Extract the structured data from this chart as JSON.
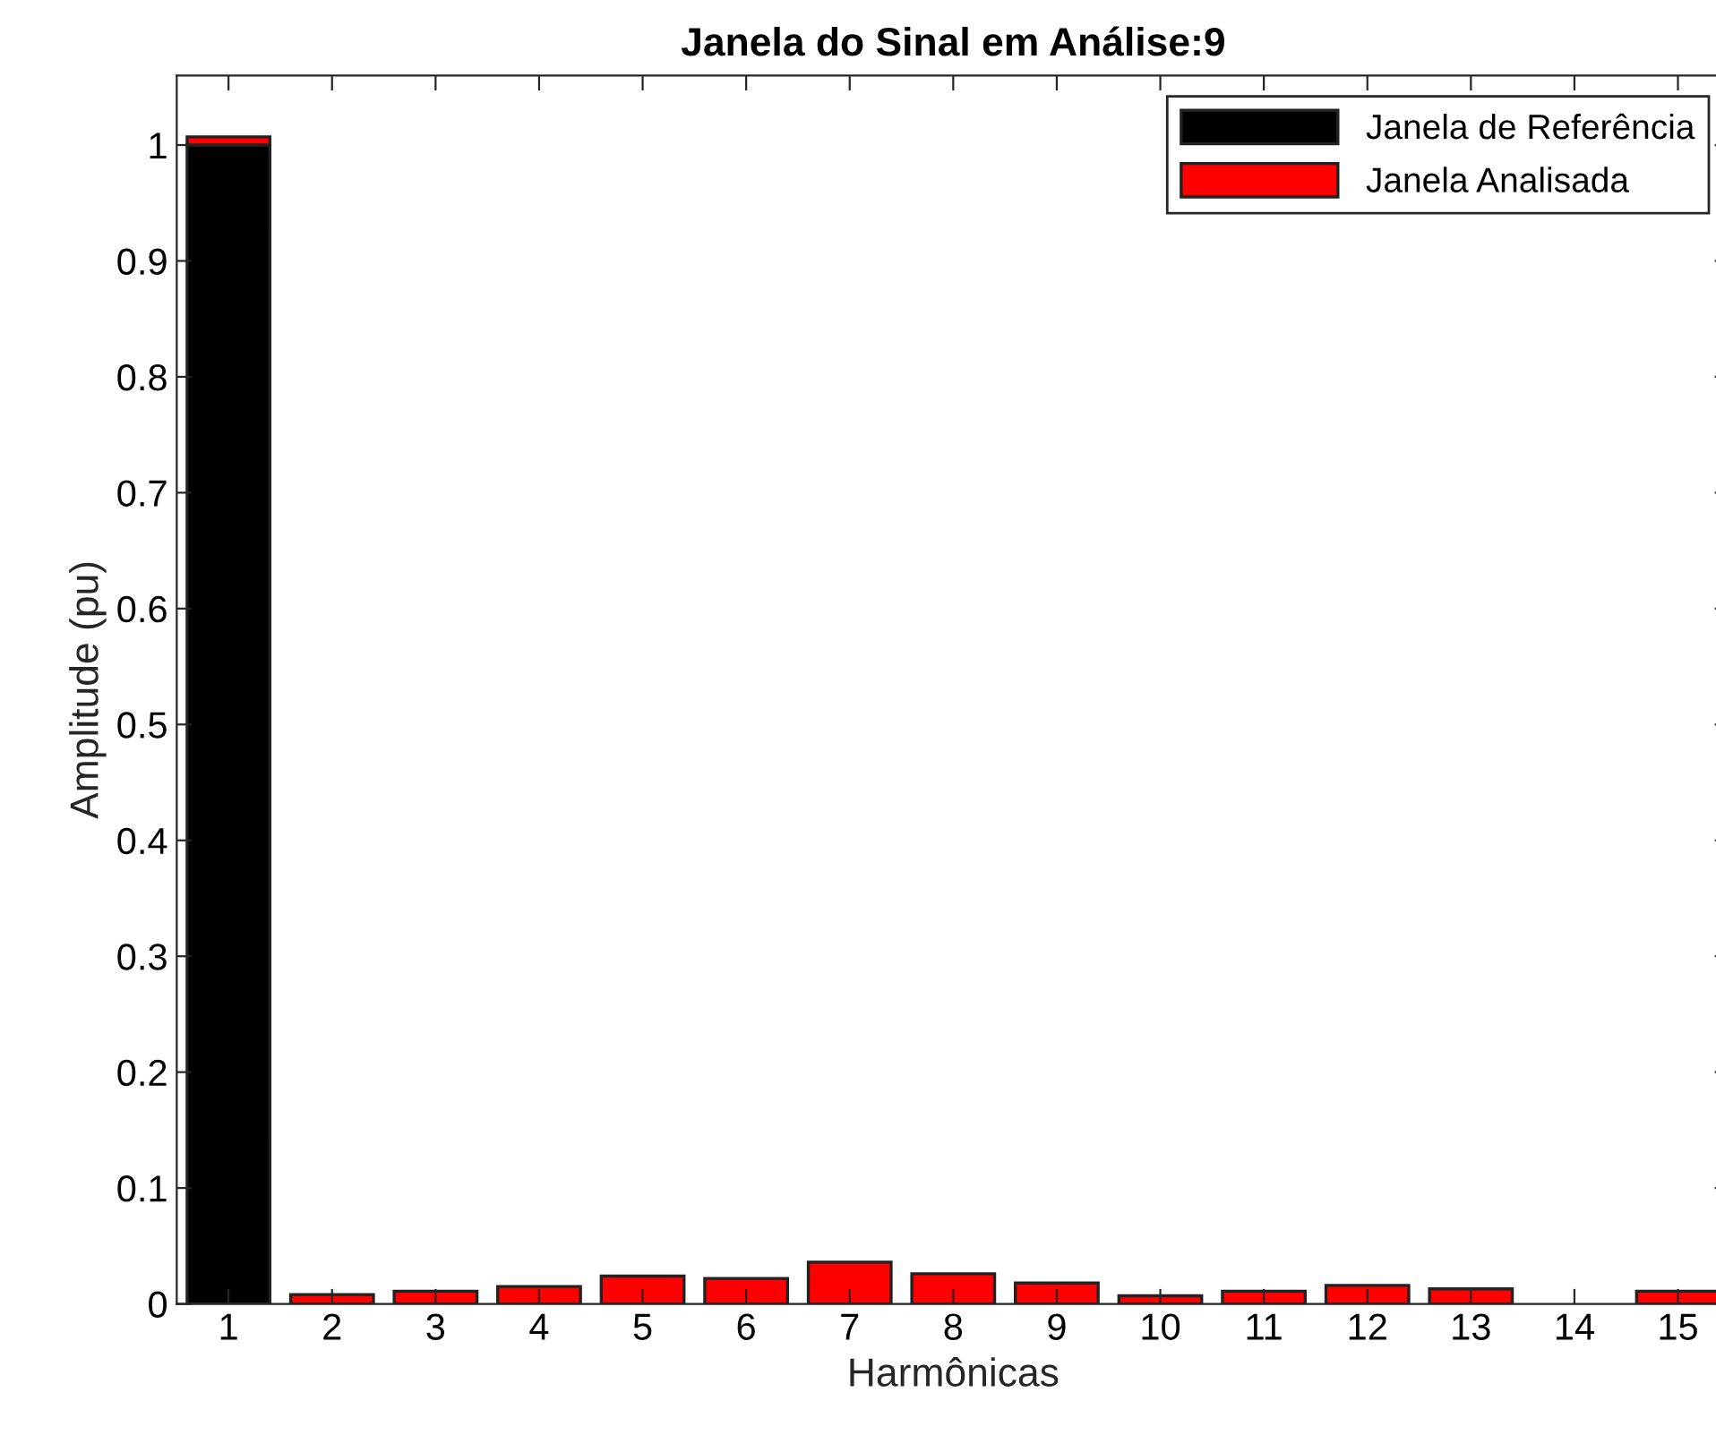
{
  "chart_data": {
    "type": "bar",
    "stacked": true,
    "title": "Janela do Sinal em Análise:9",
    "xlabel": "Harmônicas",
    "ylabel": "Amplitude (pu)",
    "categories": [
      "1",
      "2",
      "3",
      "4",
      "5",
      "6",
      "7",
      "8",
      "9",
      "10",
      "11",
      "12",
      "13",
      "14",
      "15"
    ],
    "series": [
      {
        "name": "Janela de Referência",
        "color": "#000000",
        "values": [
          1.0,
          null,
          null,
          null,
          null,
          null,
          null,
          null,
          null,
          null,
          null,
          null,
          null,
          null,
          null
        ]
      },
      {
        "name": "Janela Analisada",
        "color": "#ff0000",
        "values": [
          0.007,
          0.008,
          0.011,
          0.015,
          0.024,
          0.022,
          0.036,
          0.026,
          0.018,
          0.007,
          0.011,
          0.016,
          0.013,
          null,
          0.011
        ]
      }
    ],
    "ylim": [
      0,
      1.06
    ],
    "yticks": [
      0,
      0.1,
      0.2,
      0.3,
      0.4,
      0.5,
      0.6,
      0.7,
      0.8,
      0.9,
      1
    ],
    "grid": false,
    "legend": "top right"
  }
}
